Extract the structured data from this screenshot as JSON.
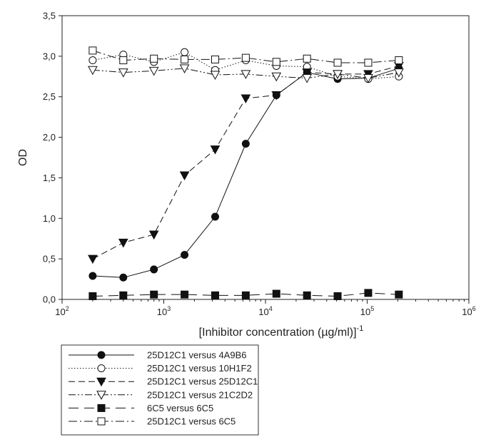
{
  "chart_data": {
    "type": "line",
    "xlabel": "[Inhibitor concentration (µg/ml)]",
    "xlabel_superscript": "-1",
    "ylabel": "OD",
    "x_scale": "log",
    "xlim": [
      100,
      1000000
    ],
    "ylim": [
      0,
      3.5
    ],
    "x_ticks": [
      {
        "value": 100,
        "base": "10",
        "exp": "2"
      },
      {
        "value": 1000,
        "base": "10",
        "exp": "3"
      },
      {
        "value": 10000,
        "base": "10",
        "exp": "4"
      },
      {
        "value": 100000,
        "base": "10",
        "exp": "5"
      },
      {
        "value": 1000000,
        "base": "10",
        "exp": "6"
      }
    ],
    "y_ticks": [
      {
        "value": 0,
        "label": "0,0"
      },
      {
        "value": 0.5,
        "label": "0,5"
      },
      {
        "value": 1.0,
        "label": "1,0"
      },
      {
        "value": 1.5,
        "label": "1,5"
      },
      {
        "value": 2.0,
        "label": "2,0"
      },
      {
        "value": 2.5,
        "label": "2,5"
      },
      {
        "value": 3.0,
        "label": "3,0"
      },
      {
        "value": 3.5,
        "label": "3,5"
      }
    ],
    "grid": false,
    "legend_position": "bottom-left, below plot",
    "x": [
      200,
      400,
      800,
      1600,
      3200,
      6400,
      12800,
      25600,
      51200,
      102400,
      204800
    ],
    "series": [
      {
        "name": "25D12C1 versus 4A9B6",
        "marker": "circle-filled",
        "dash": "solid",
        "values": [
          0.29,
          0.27,
          0.37,
          0.55,
          1.02,
          1.92,
          2.52,
          2.8,
          2.72,
          2.73,
          2.85
        ]
      },
      {
        "name": "25D12C1 versus 10H1F2",
        "marker": "circle-open",
        "dash": "dotted",
        "values": [
          2.95,
          3.02,
          2.93,
          3.05,
          2.83,
          2.95,
          2.88,
          2.87,
          2.75,
          2.72,
          2.75
        ]
      },
      {
        "name": "25D12C1 versus 25D12C1",
        "marker": "triangle-down-filled",
        "dash": "dashed",
        "values": [
          0.5,
          0.7,
          0.8,
          1.53,
          1.85,
          2.48,
          2.52,
          2.8,
          2.78,
          2.78,
          2.88
        ]
      },
      {
        "name": "25D12C1 versus 21C2D2",
        "marker": "triangle-down-open",
        "dash": "dash-dot-dot",
        "values": [
          2.83,
          2.8,
          2.82,
          2.85,
          2.77,
          2.78,
          2.75,
          2.73,
          2.78,
          2.73,
          2.8
        ]
      },
      {
        "name": "6C5  versus 6C5",
        "marker": "square-filled",
        "dash": "long-dash",
        "values": [
          0.04,
          0.05,
          0.06,
          0.06,
          0.05,
          0.05,
          0.07,
          0.05,
          0.04,
          0.08,
          0.06
        ]
      },
      {
        "name": "25D12C1 versus 6C5",
        "marker": "square-open",
        "dash": "dash-dot",
        "values": [
          3.07,
          2.95,
          2.97,
          2.96,
          2.96,
          2.98,
          2.93,
          2.97,
          2.92,
          2.92,
          2.95
        ]
      }
    ]
  }
}
